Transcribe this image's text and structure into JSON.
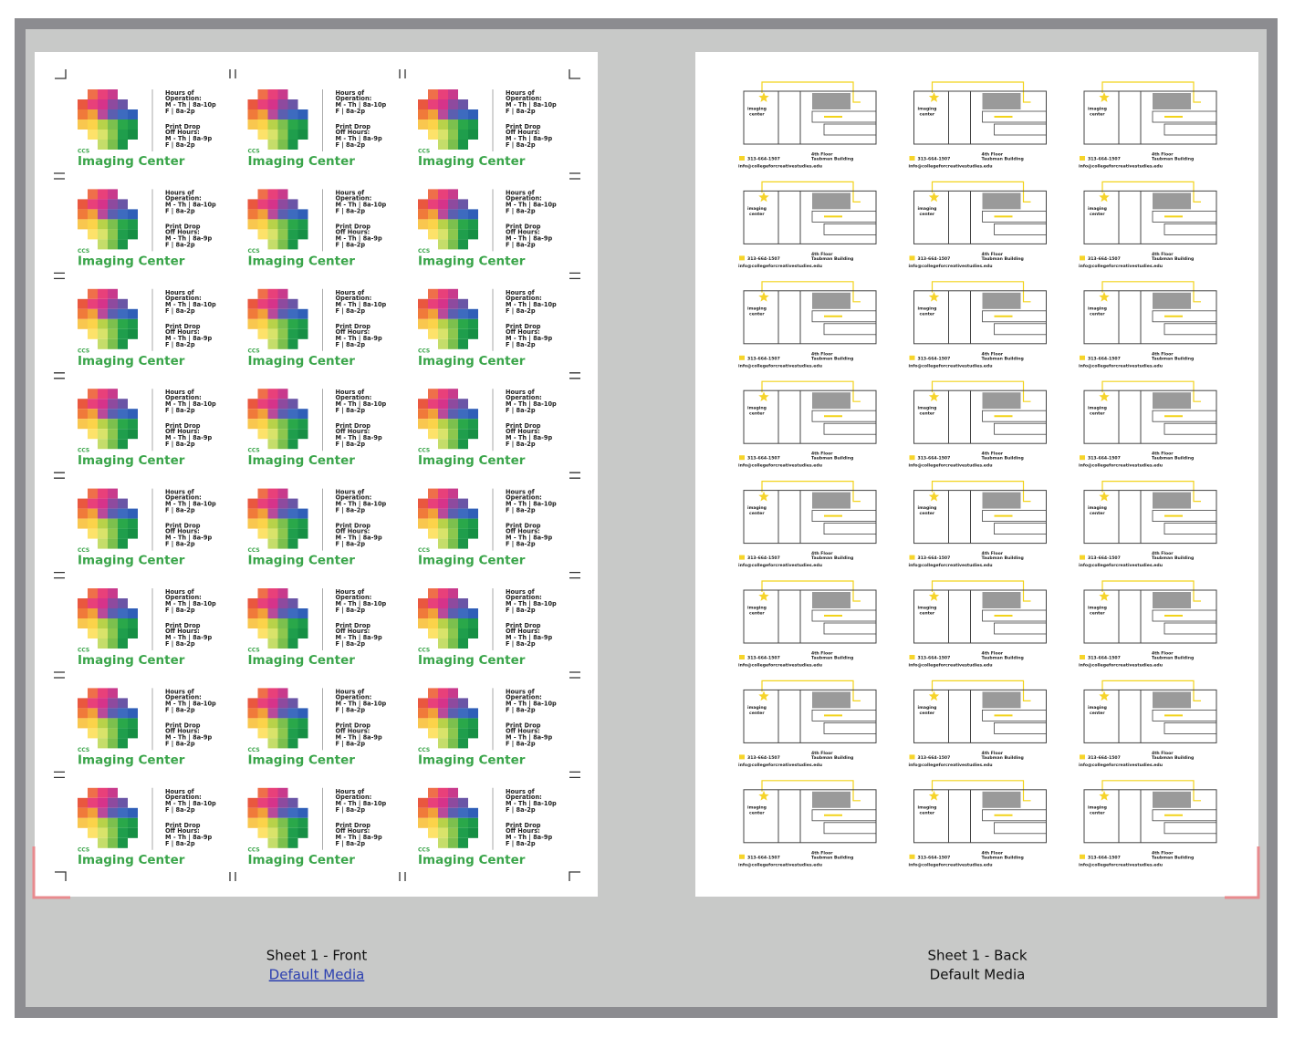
{
  "front": {
    "card": {
      "hours_line1": "Hours of",
      "hours_line2": "Operation:",
      "hours_weekday": "M - Th | 8a-10p",
      "hours_friday": "F | 8a-2p",
      "dropoff_line1": "Print Drop",
      "dropoff_line2": "Off Hours:",
      "dropoff_weekday": "M - Th | 8a-9p",
      "dropoff_friday": "F | 8a-2p",
      "brand_small": "CCS",
      "brand": "Imaging Center"
    }
  },
  "back": {
    "card": {
      "logo_line1": "imaging",
      "logo_line2": "center",
      "phone": "313-664-1507",
      "location_line1": "4th Floor",
      "location_line2": "Taubman Building",
      "email": "info@collegeforcreativestudies.edu"
    }
  },
  "sheets": [
    {
      "label": "Sheet 1 - Front",
      "media": "Default Media"
    },
    {
      "label": "Sheet 1 - Back",
      "media": "Default Media"
    }
  ]
}
